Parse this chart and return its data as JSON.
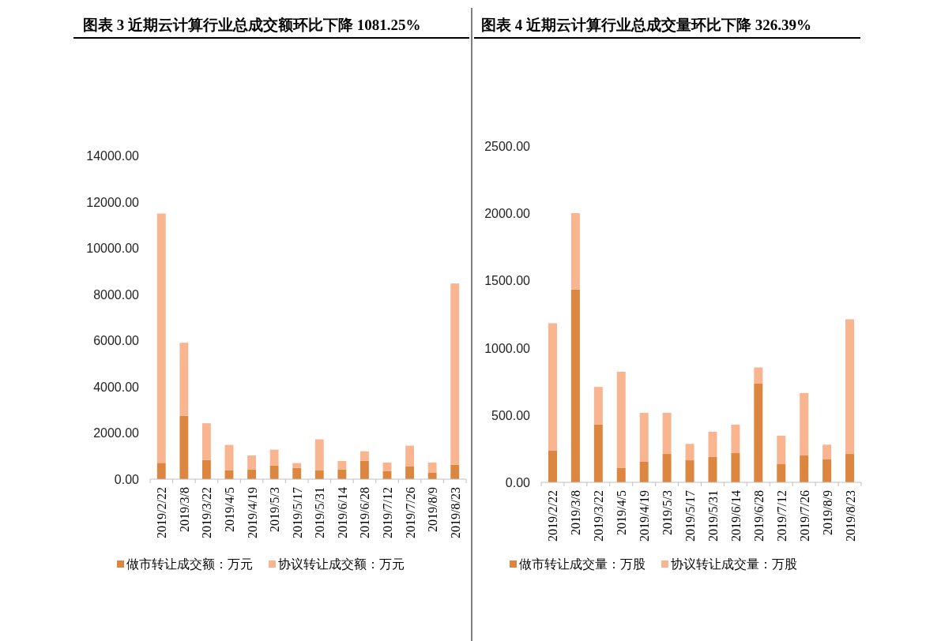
{
  "chart_data": [
    {
      "type": "bar",
      "title": "图表 3 近期云计算行业总成交额环比下降 1081.25%",
      "stacked": true,
      "legend": "bottom",
      "categories": [
        "2019/2/22",
        "2019/3/8",
        "2019/3/22",
        "2019/4/5",
        "2019/4/19",
        "2019/5/3",
        "2019/5/17",
        "2019/5/31",
        "2019/6/14",
        "2019/6/28",
        "2019/7/12",
        "2019/7/26",
        "2019/8/9",
        "2019/8/23"
      ],
      "series": [
        {
          "name": "做市转让成交额：万元",
          "color": "#dd8640",
          "values": [
            707,
            2738,
            833,
            377,
            422,
            593,
            491,
            377,
            422,
            799,
            342,
            548,
            274,
            628
          ]
        },
        {
          "name": "协议转让成交额：万元",
          "color": "#f8b590",
          "values": [
            10783,
            3162,
            1586,
            1106,
            605,
            685,
            205,
            1346,
            365,
            410,
            377,
            901,
            445,
            7838
          ]
        }
      ],
      "ylim": [
        0,
        14000
      ],
      "yticks": [
        {
          "value": 0,
          "label": "0.00"
        },
        {
          "value": 2000,
          "label": "2000.00"
        },
        {
          "value": 4000,
          "label": "4000.00"
        },
        {
          "value": 6000,
          "label": "6000.00"
        },
        {
          "value": 8000,
          "label": "8000.00"
        },
        {
          "value": 10000,
          "label": "10000.00"
        },
        {
          "value": 12000,
          "label": "12000.00"
        },
        {
          "value": 14000,
          "label": "14000.00"
        }
      ]
    },
    {
      "type": "bar",
      "title": "图表 4 近期云计算行业总成交量环比下降 326.39%",
      "stacked": true,
      "legend": "bottom",
      "categories": [
        "2019/2/22",
        "2019/3/8",
        "2019/3/22",
        "2019/4/5",
        "2019/4/19",
        "2019/5/3",
        "2019/5/17",
        "2019/5/31",
        "2019/6/14",
        "2019/6/28",
        "2019/7/12",
        "2019/7/26",
        "2019/8/9",
        "2019/8/23"
      ],
      "series": [
        {
          "name": "做市转让成交量：万股",
          "color": "#dd8640",
          "values": [
            235,
            1433,
            429,
            106,
            153,
            211,
            164,
            188,
            217,
            736,
            135,
            200,
            170,
            211
          ]
        },
        {
          "name": "协议转让成交量：万股",
          "color": "#f8b590",
          "values": [
            948,
            568,
            280,
            716,
            364,
            306,
            122,
            188,
            212,
            118,
            212,
            464,
            110,
            1001
          ]
        }
      ],
      "ylim": [
        0,
        2500
      ],
      "yticks": [
        {
          "value": 0,
          "label": "0.00"
        },
        {
          "value": 500,
          "label": "500.00"
        },
        {
          "value": 1000,
          "label": "1000.00"
        },
        {
          "value": 1500,
          "label": "1500.00"
        },
        {
          "value": 2000,
          "label": "2000.00"
        },
        {
          "value": 2500,
          "label": "2500.00"
        }
      ]
    }
  ]
}
